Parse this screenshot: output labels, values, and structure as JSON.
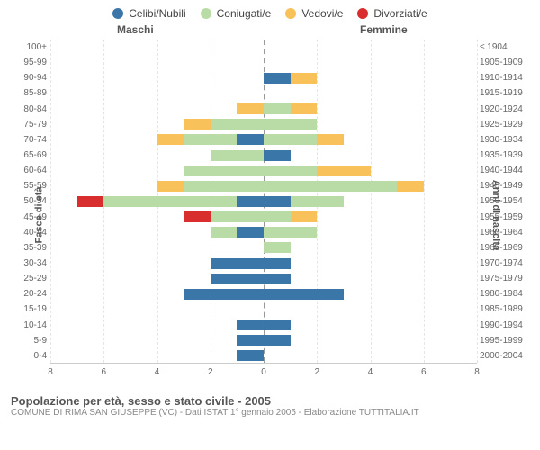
{
  "legend": [
    {
      "label": "Celibi/Nubili",
      "color": "#3a76a8"
    },
    {
      "label": "Coniugati/e",
      "color": "#b9dca6"
    },
    {
      "label": "Vedovi/e",
      "color": "#f8c15a"
    },
    {
      "label": "Divorziati/e",
      "color": "#d92e2e"
    }
  ],
  "header_male": "Maschi",
  "header_female": "Femmine",
  "ylabel_left": "Fasce di età",
  "ylabel_right": "Anni di nascita",
  "xmax": 8,
  "xtick_step": 2,
  "rows": [
    {
      "age": "100+",
      "year": "≤ 1904",
      "male": [
        0,
        0,
        0,
        0
      ],
      "female": [
        0,
        0,
        0,
        0
      ]
    },
    {
      "age": "95-99",
      "year": "1905-1909",
      "male": [
        0,
        0,
        0,
        0
      ],
      "female": [
        0,
        0,
        0,
        0
      ]
    },
    {
      "age": "90-94",
      "year": "1910-1914",
      "male": [
        0,
        0,
        0,
        0
      ],
      "female": [
        1,
        0,
        1,
        0
      ]
    },
    {
      "age": "85-89",
      "year": "1915-1919",
      "male": [
        0,
        0,
        0,
        0
      ],
      "female": [
        0,
        0,
        0,
        0
      ]
    },
    {
      "age": "80-84",
      "year": "1920-1924",
      "male": [
        0,
        0,
        1,
        0
      ],
      "female": [
        0,
        1,
        1,
        0
      ]
    },
    {
      "age": "75-79",
      "year": "1925-1929",
      "male": [
        0,
        2,
        1,
        0
      ],
      "female": [
        0,
        2,
        0,
        0
      ]
    },
    {
      "age": "70-74",
      "year": "1930-1934",
      "male": [
        1,
        2,
        1,
        0
      ],
      "female": [
        0,
        2,
        1,
        0
      ]
    },
    {
      "age": "65-69",
      "year": "1935-1939",
      "male": [
        0,
        2,
        0,
        0
      ],
      "female": [
        1,
        0,
        0,
        0
      ]
    },
    {
      "age": "60-64",
      "year": "1940-1944",
      "male": [
        0,
        3,
        0,
        0
      ],
      "female": [
        0,
        2,
        2,
        0
      ]
    },
    {
      "age": "55-59",
      "year": "1945-1949",
      "male": [
        0,
        3,
        1,
        0
      ],
      "female": [
        0,
        5,
        1,
        0
      ]
    },
    {
      "age": "50-54",
      "year": "1950-1954",
      "male": [
        1,
        5,
        0,
        1
      ],
      "female": [
        1,
        2,
        0,
        0
      ]
    },
    {
      "age": "45-49",
      "year": "1955-1959",
      "male": [
        0,
        2,
        0,
        1
      ],
      "female": [
        0,
        1,
        1,
        0
      ]
    },
    {
      "age": "40-44",
      "year": "1960-1964",
      "male": [
        1,
        1,
        0,
        0
      ],
      "female": [
        0,
        2,
        0,
        0
      ]
    },
    {
      "age": "35-39",
      "year": "1965-1969",
      "male": [
        0,
        0,
        0,
        0
      ],
      "female": [
        0,
        1,
        0,
        0
      ]
    },
    {
      "age": "30-34",
      "year": "1970-1974",
      "male": [
        2,
        0,
        0,
        0
      ],
      "female": [
        1,
        0,
        0,
        0
      ]
    },
    {
      "age": "25-29",
      "year": "1975-1979",
      "male": [
        2,
        0,
        0,
        0
      ],
      "female": [
        1,
        0,
        0,
        0
      ]
    },
    {
      "age": "20-24",
      "year": "1980-1984",
      "male": [
        3,
        0,
        0,
        0
      ],
      "female": [
        3,
        0,
        0,
        0
      ]
    },
    {
      "age": "15-19",
      "year": "1985-1989",
      "male": [
        0,
        0,
        0,
        0
      ],
      "female": [
        0,
        0,
        0,
        0
      ]
    },
    {
      "age": "10-14",
      "year": "1990-1994",
      "male": [
        1,
        0,
        0,
        0
      ],
      "female": [
        1,
        0,
        0,
        0
      ]
    },
    {
      "age": "5-9",
      "year": "1995-1999",
      "male": [
        1,
        0,
        0,
        0
      ],
      "female": [
        1,
        0,
        0,
        0
      ]
    },
    {
      "age": "0-4",
      "year": "2000-2004",
      "male": [
        1,
        0,
        0,
        0
      ],
      "female": [
        0,
        0,
        0,
        0
      ]
    }
  ],
  "title": "Popolazione per età, sesso e stato civile - 2005",
  "subtitle": "COMUNE DI RIMA SAN GIUSEPPE (VC) - Dati ISTAT 1° gennaio 2005 - Elaborazione TUTTITALIA.IT",
  "colors": {
    "grid": "#e5e5e5",
    "axis_zero": "#999999",
    "background": "#ffffff"
  }
}
